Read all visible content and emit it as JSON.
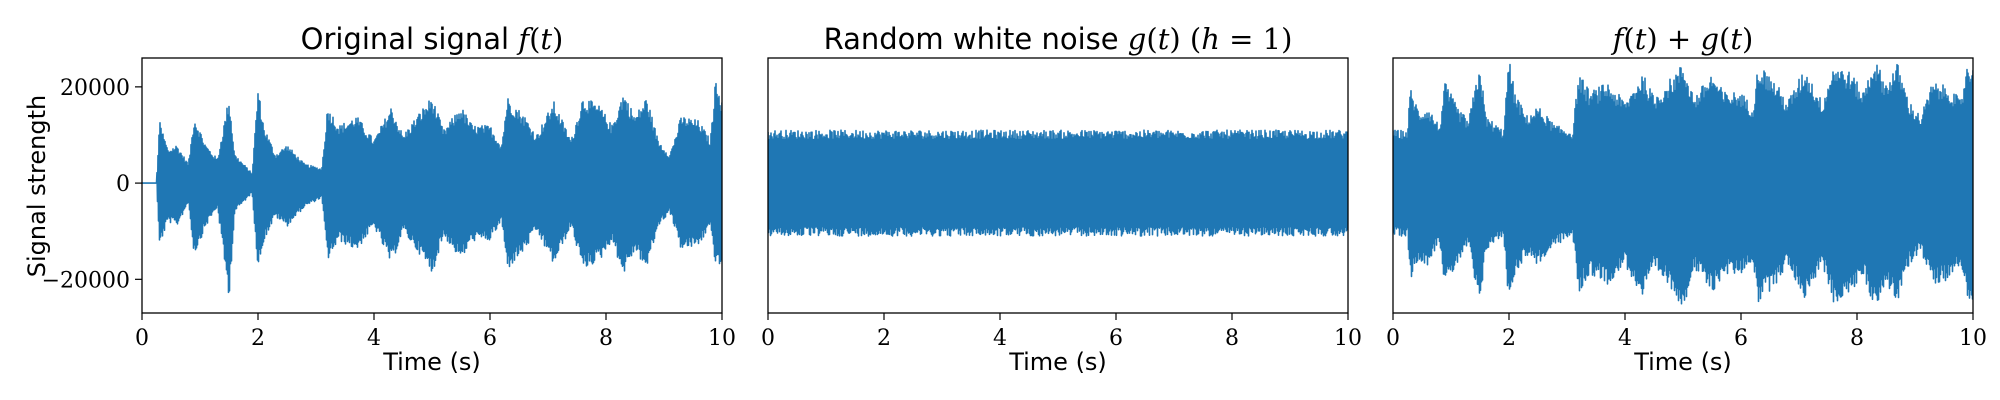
{
  "chart_data": [
    {
      "type": "line",
      "title": "Original signal f(t)",
      "xlabel": "Time (s)",
      "ylabel": "Signal strength",
      "xlim": [
        0,
        10
      ],
      "ylim": [
        -27000,
        26000
      ],
      "xticks": [
        0,
        2,
        4,
        6,
        8,
        10
      ],
      "yticks": [
        -20000,
        0,
        20000
      ],
      "xtick_labels": [
        "0",
        "2",
        "4",
        "6",
        "8",
        "10"
      ],
      "ytick_labels": [
        "−20000",
        "0",
        "20000"
      ],
      "series": [
        {
          "color": "#1f77b4",
          "envelope": {
            "t": [
              0,
              0.25,
              0.3,
              0.45,
              0.6,
              0.8,
              0.9,
              1.1,
              1.3,
              1.5,
              1.6,
              1.9,
              2.0,
              2.1,
              2.3,
              2.5,
              2.8,
              3.1,
              3.2,
              3.4,
              3.7,
              4.0,
              4.3,
              4.5,
              4.8,
              5.0,
              5.2,
              5.5,
              5.7,
              6.0,
              6.2,
              6.3,
              6.6,
              6.8,
              7.1,
              7.4,
              7.6,
              7.9,
              8.1,
              8.3,
              8.5,
              8.7,
              8.9,
              9.1,
              9.3,
              9.6,
              9.8,
              9.9,
              10.0
            ],
            "upper": [
              0,
              0,
              13000,
              7000,
              8000,
              4000,
              14000,
              8000,
              5000,
              18000,
              6000,
              2000,
              20000,
              12000,
              6000,
              8000,
              4000,
              3000,
              16000,
              12000,
              14000,
              9000,
              16000,
              10000,
              15000,
              18000,
              11000,
              16000,
              12000,
              12000,
              8000,
              18000,
              14000,
              10000,
              17000,
              9000,
              18000,
              16000,
              12000,
              19000,
              14000,
              18000,
              9000,
              6000,
              14000,
              13000,
              9000,
              23000,
              17000
            ],
            "lower": [
              0,
              0,
              -13000,
              -8000,
              -9000,
              -4000,
              -15000,
              -9000,
              -5000,
              -24000,
              -6000,
              -2000,
              -18000,
              -12000,
              -7000,
              -9000,
              -5000,
              -3000,
              -16000,
              -12000,
              -14000,
              -9000,
              -17000,
              -10000,
              -15000,
              -19000,
              -11000,
              -16000,
              -12000,
              -12000,
              -8000,
              -18000,
              -14000,
              -10000,
              -17000,
              -9000,
              -18000,
              -16000,
              -12000,
              -19000,
              -14000,
              -18000,
              -9000,
              -6000,
              -14000,
              -13000,
              -9000,
              -18000,
              -17000
            ]
          }
        }
      ]
    },
    {
      "type": "line",
      "title": "Random white noise g(t) (h = 1)",
      "xlabel": "Time (s)",
      "xlim": [
        0,
        10
      ],
      "ylim": [
        -27000,
        26000
      ],
      "xticks": [
        0,
        2,
        4,
        6,
        8,
        10
      ],
      "xtick_labels": [
        "0",
        "2",
        "4",
        "6",
        "8",
        "10"
      ],
      "series": [
        {
          "color": "#1f77b4",
          "envelope": {
            "t": [
              0,
              10
            ],
            "upper": [
              11000,
              11000
            ],
            "lower": [
              -11000,
              -11000
            ]
          }
        }
      ]
    },
    {
      "type": "line",
      "title": "f(t) + g(t)",
      "xlabel": "Time (s)",
      "xlim": [
        0,
        10
      ],
      "ylim": [
        -27000,
        26000
      ],
      "xticks": [
        0,
        2,
        4,
        6,
        8,
        10
      ],
      "xtick_labels": [
        "0",
        "2",
        "4",
        "6",
        "8",
        "10"
      ],
      "series": [
        {
          "color": "#1f77b4",
          "envelope": {
            "t": [
              0,
              0.25,
              0.3,
              0.45,
              0.6,
              0.8,
              0.9,
              1.1,
              1.3,
              1.5,
              1.6,
              1.9,
              2.0,
              2.1,
              2.3,
              2.5,
              2.8,
              3.1,
              3.2,
              3.4,
              3.7,
              4.0,
              4.3,
              4.5,
              4.8,
              5.0,
              5.2,
              5.5,
              5.7,
              6.0,
              6.2,
              6.3,
              6.6,
              6.8,
              7.1,
              7.4,
              7.6,
              7.9,
              8.1,
              8.3,
              8.5,
              8.7,
              8.9,
              9.1,
              9.3,
              9.6,
              9.8,
              9.9,
              10.0
            ],
            "upper": [
              11000,
              11000,
              20000,
              15000,
              16000,
              12000,
              21000,
              16000,
              13000,
              25000,
              14000,
              11000,
              26000,
              19000,
              14000,
              16000,
              12000,
              11000,
              23000,
              19000,
              21000,
              17000,
              23000,
              18000,
              22000,
              25000,
              18000,
              23000,
              19000,
              19000,
              16000,
              25000,
              21000,
              17000,
              24000,
              17000,
              25000,
              23000,
              19000,
              26000,
              21000,
              25000,
              17000,
              14000,
              21000,
              20000,
              17000,
              26000,
              24000
            ],
            "lower": [
              -11000,
              -11000,
              -20000,
              -16000,
              -17000,
              -12000,
              -22000,
              -17000,
              -13000,
              -27000,
              -14000,
              -11000,
              -25000,
              -19000,
              -15000,
              -17000,
              -13000,
              -11000,
              -23000,
              -19000,
              -21000,
              -17000,
              -24000,
              -18000,
              -22000,
              -26000,
              -18000,
              -23000,
              -19000,
              -19000,
              -16000,
              -25000,
              -21000,
              -17000,
              -24000,
              -17000,
              -25000,
              -23000,
              -19000,
              -26000,
              -21000,
              -25000,
              -17000,
              -14000,
              -21000,
              -20000,
              -17000,
              -25000,
              -24000
            ]
          }
        }
      ]
    }
  ]
}
